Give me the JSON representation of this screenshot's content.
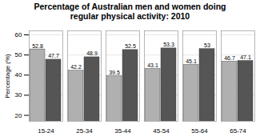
{
  "chart_data": {
    "type": "bar",
    "title": "Percentage of Australian men and women doing\nregular physical activity: 2010",
    "ylabel": "Percentage (%)",
    "categories": [
      "15-24",
      "25-34",
      "35-44",
      "45-54",
      "55-64",
      "65-74"
    ],
    "series": [
      {
        "color": "#b0b0b0",
        "values": [
          52.8,
          42.2,
          39.5,
          43.1,
          45.1,
          46.7
        ]
      },
      {
        "color": "#555555",
        "values": [
          47.7,
          48.9,
          52.5,
          53.3,
          53,
          47.1
        ]
      }
    ],
    "ylim": [
      17,
      62
    ],
    "yticks": [
      20,
      30,
      40,
      50,
      60
    ],
    "grid": true,
    "data_labels": true
  }
}
